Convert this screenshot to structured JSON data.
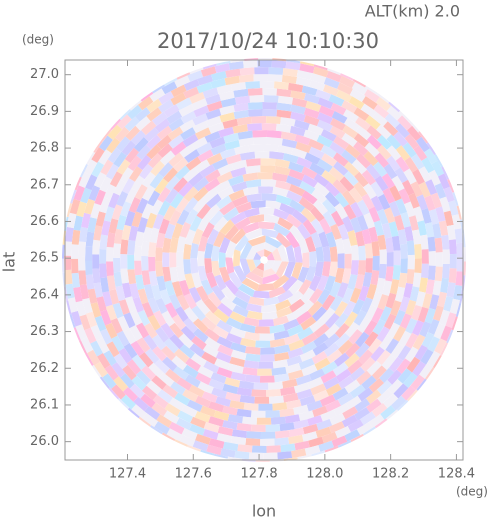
{
  "chart_data": {
    "type": "radar-image",
    "title": "2017/10/24 10:10:30",
    "subtitle": "ALT(km) 2.0",
    "x_label": "lon",
    "y_label": "lat",
    "x_unit": "(deg)",
    "y_unit": "(deg)",
    "xlim": [
      127.21,
      128.42
    ],
    "ylim": [
      25.95,
      27.04
    ],
    "xticks": [
      127.4,
      127.6,
      127.8,
      {
        "value": 128.0,
        "label": "128.0"
      },
      128.2,
      128.4
    ],
    "yticks": [
      {
        "value": 26.0,
        "label": "26.0"
      },
      26.1,
      26.2,
      26.3,
      26.4,
      26.5,
      26.6,
      26.7,
      26.8,
      26.9,
      {
        "value": 27.0,
        "label": "27.0"
      }
    ]
  }
}
